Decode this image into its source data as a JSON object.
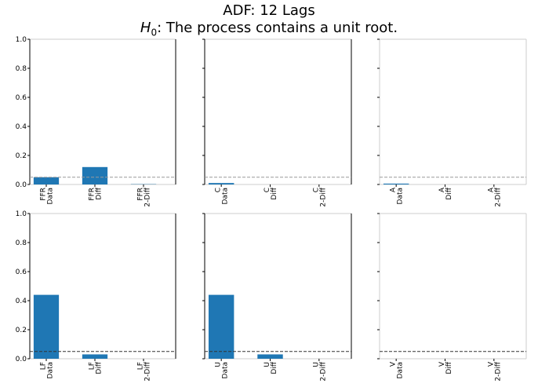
{
  "title": "ADF: 12 Lags",
  "subtitle": {
    "h0_symbol": "H",
    "h0_subscript": "0",
    "text": ": The process contains a unit root."
  },
  "colors": {
    "bar": "#1f77b4",
    "significance_line_top": "#999999",
    "significance_line_bottom": "#333333",
    "axis": "#000000",
    "panel_border": "#cccccc"
  },
  "chart_data": [
    {
      "type": "bar",
      "variable": "FFR",
      "ylim": [
        0,
        1.0
      ],
      "yticks": [
        "0.0",
        "0.2",
        "0.4",
        "0.6",
        "0.8",
        "1.0"
      ],
      "threshold": 0.05,
      "categories": [
        [
          "FFR",
          "Data"
        ],
        [
          "FFR",
          "Diff"
        ],
        [
          "FFR",
          "2-Diff"
        ]
      ],
      "values": [
        0.05,
        0.12,
        0.003
      ]
    },
    {
      "type": "bar",
      "variable": "C",
      "ylim": [
        0,
        1.0
      ],
      "yticks": [],
      "threshold": 0.05,
      "categories": [
        [
          "C",
          "Data"
        ],
        [
          "C",
          "Diff"
        ],
        [
          "C",
          "2-Diff"
        ]
      ],
      "values": [
        0.01,
        0.0,
        0.0
      ]
    },
    {
      "type": "bar",
      "variable": "A",
      "ylim": [
        0,
        1.0
      ],
      "yticks": [],
      "threshold": 0.05,
      "categories": [
        [
          "A",
          "Data"
        ],
        [
          "A",
          "Diff"
        ],
        [
          "A",
          "2-Diff"
        ]
      ],
      "values": [
        0.006,
        0.0,
        0.0
      ]
    },
    {
      "type": "bar",
      "variable": "LF",
      "ylim": [
        0,
        1.0
      ],
      "yticks": [
        "0.0",
        "0.2",
        "0.4",
        "0.6",
        "0.8",
        "1.0"
      ],
      "threshold": 0.05,
      "categories": [
        [
          "LF",
          "Data"
        ],
        [
          "LF",
          "Diff"
        ],
        [
          "LF",
          "2-Diff"
        ]
      ],
      "values": [
        0.44,
        0.03,
        0.0
      ]
    },
    {
      "type": "bar",
      "variable": "U",
      "ylim": [
        0,
        1.0
      ],
      "yticks": [],
      "threshold": 0.05,
      "categories": [
        [
          "U",
          "Data"
        ],
        [
          "U",
          "Diff"
        ],
        [
          "U",
          "2-Diff"
        ]
      ],
      "values": [
        0.44,
        0.03,
        0.0
      ]
    },
    {
      "type": "bar",
      "variable": "V",
      "ylim": [
        0,
        1.0
      ],
      "yticks": [],
      "threshold": 0.05,
      "categories": [
        [
          "V",
          "Data"
        ],
        [
          "V",
          "Diff"
        ],
        [
          "V",
          "2-Diff"
        ]
      ],
      "values": [
        0.0,
        0.0,
        0.0
      ]
    }
  ]
}
